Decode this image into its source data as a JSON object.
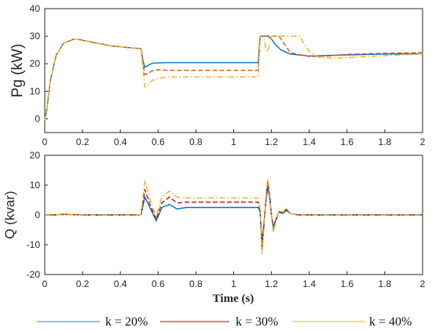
{
  "chart_data": [
    {
      "type": "line",
      "ylabel": "Pg (kW)",
      "xlabel": "",
      "xlim": [
        0,
        2
      ],
      "ylim": [
        -5,
        40
      ],
      "xticks": [
        "0",
        "0.2",
        "0.4",
        "0.6",
        "0.8",
        "1",
        "1.2",
        "1.4",
        "1.6",
        "1.8",
        "2"
      ],
      "yticks": [
        "0",
        "10",
        "20",
        "30",
        "40"
      ],
      "series": [
        {
          "name": "k = 20%",
          "color": "#0072BD",
          "dash": "solid",
          "x": [
            0,
            0.01,
            0.03,
            0.06,
            0.1,
            0.15,
            0.18,
            0.25,
            0.35,
            0.45,
            0.51,
            0.52,
            0.53,
            0.55,
            0.57,
            0.6,
            0.65,
            0.7,
            0.8,
            1.0,
            1.13,
            1.14,
            1.18,
            1.2,
            1.22,
            1.25,
            1.3,
            1.4,
            1.5,
            1.6,
            1.8,
            2.0
          ],
          "y": [
            -0.5,
            3,
            14,
            23,
            27.5,
            28.8,
            28.8,
            27.8,
            26.5,
            25.8,
            25.5,
            21,
            18.7,
            19.5,
            20.2,
            20.3,
            20.4,
            20.4,
            20.4,
            20.4,
            20.4,
            30,
            30,
            29,
            27,
            25,
            23.5,
            22.8,
            23,
            23.2,
            23.5,
            23.6
          ]
        },
        {
          "name": "k = 30%",
          "color": "#D95319",
          "dash": "dashed",
          "x": [
            0,
            0.01,
            0.03,
            0.06,
            0.1,
            0.15,
            0.18,
            0.25,
            0.35,
            0.45,
            0.51,
            0.52,
            0.53,
            0.55,
            0.57,
            0.6,
            0.65,
            0.7,
            0.8,
            1.0,
            1.13,
            1.14,
            1.18,
            1.24,
            1.25,
            1.28,
            1.3,
            1.4,
            1.5,
            1.6,
            1.8,
            2.0
          ],
          "y": [
            -0.5,
            3,
            14,
            23,
            27.5,
            28.8,
            28.8,
            27.8,
            26.5,
            25.8,
            25.5,
            20,
            16,
            16.5,
            17.5,
            17.8,
            17.6,
            17.6,
            17.6,
            17.6,
            17.6,
            30,
            30,
            30,
            29,
            26,
            24,
            22.6,
            22.8,
            23.4,
            23.8,
            24
          ]
        },
        {
          "name": "k = 40%",
          "color": "#EDB120",
          "dash": "dashdot",
          "x": [
            0,
            0.01,
            0.03,
            0.06,
            0.1,
            0.15,
            0.18,
            0.25,
            0.35,
            0.45,
            0.51,
            0.52,
            0.53,
            0.55,
            0.57,
            0.6,
            0.65,
            0.7,
            0.8,
            1.0,
            1.13,
            1.14,
            1.16,
            1.17,
            1.18,
            1.19,
            1.2,
            1.25,
            1.35,
            1.37,
            1.4,
            1.45,
            1.55,
            1.7,
            2.0
          ],
          "y": [
            -0.5,
            3,
            14,
            23,
            27.5,
            28.8,
            28.8,
            27.8,
            26.5,
            25.8,
            25.5,
            18,
            11.5,
            12.5,
            14,
            14.6,
            15.2,
            15.2,
            15.2,
            15.2,
            15.2,
            30,
            29.5,
            25.5,
            24.3,
            27,
            30,
            30,
            30,
            27.5,
            24.5,
            22.3,
            22,
            22.6,
            23.6
          ]
        }
      ]
    },
    {
      "type": "line",
      "ylabel": "Q (kvar)",
      "xlabel": "Time (s)",
      "xlim": [
        0,
        2
      ],
      "ylim": [
        -20,
        20
      ],
      "xticks": [
        "0",
        "0.2",
        "0.4",
        "0.6",
        "0.8",
        "1",
        "1.2",
        "1.4",
        "1.6",
        "1.8",
        "2"
      ],
      "yticks": [
        "-20",
        "-10",
        "0",
        "10",
        "20"
      ],
      "series": [
        {
          "name": "k = 20%",
          "color": "#0072BD",
          "dash": "solid",
          "x": [
            0,
            0.05,
            0.1,
            0.2,
            0.3,
            0.4,
            0.5,
            0.51,
            0.53,
            0.56,
            0.59,
            0.62,
            0.66,
            0.7,
            0.75,
            0.8,
            0.9,
            1.0,
            1.13,
            1.14,
            1.15,
            1.16,
            1.17,
            1.18,
            1.19,
            1.2,
            1.21,
            1.22,
            1.24,
            1.26,
            1.28,
            1.3,
            1.34,
            1.4,
            1.6,
            2.0
          ],
          "y": [
            0,
            0,
            0.2,
            0,
            0,
            0,
            0,
            0.1,
            6,
            2,
            -2,
            2.5,
            3.5,
            2,
            2.5,
            2.5,
            2.5,
            2.5,
            2.5,
            1,
            -9.5,
            -3,
            4,
            9.5,
            6,
            0,
            -4,
            -2,
            1,
            0.5,
            1.5,
            0.5,
            0,
            0,
            0,
            0
          ]
        },
        {
          "name": "k = 30%",
          "color": "#A2142F",
          "dash": "dashed",
          "x": [
            0,
            0.05,
            0.1,
            0.2,
            0.3,
            0.4,
            0.5,
            0.51,
            0.53,
            0.56,
            0.59,
            0.62,
            0.66,
            0.7,
            0.75,
            0.8,
            0.9,
            1.0,
            1.13,
            1.14,
            1.15,
            1.16,
            1.17,
            1.18,
            1.19,
            1.2,
            1.21,
            1.22,
            1.24,
            1.26,
            1.28,
            1.3,
            1.34,
            1.4,
            1.6,
            2.0
          ],
          "y": [
            0,
            0,
            0.2,
            0,
            0,
            0,
            0,
            0.1,
            8.5,
            3,
            -1.5,
            4,
            6,
            4,
            4.3,
            4.3,
            4.3,
            4.3,
            4.3,
            1.5,
            -11.5,
            -4,
            5,
            11,
            7,
            0,
            -5,
            -2.5,
            1,
            0.8,
            1.8,
            0.5,
            0,
            0,
            0,
            0
          ]
        },
        {
          "name": "k = 40%",
          "color": "#EDB120",
          "dash": "dashdot",
          "x": [
            0,
            0.05,
            0.1,
            0.2,
            0.3,
            0.4,
            0.5,
            0.51,
            0.53,
            0.56,
            0.59,
            0.62,
            0.66,
            0.7,
            0.75,
            0.8,
            0.9,
            1.0,
            1.13,
            1.14,
            1.15,
            1.16,
            1.17,
            1.18,
            1.19,
            1.2,
            1.21,
            1.22,
            1.24,
            1.26,
            1.28,
            1.3,
            1.34,
            1.4,
            1.6,
            2.0
          ],
          "y": [
            0,
            0,
            0.2,
            0,
            0,
            0,
            0,
            0.1,
            11.5,
            4.5,
            -0.5,
            6,
            8,
            6,
            5.7,
            5.7,
            5.7,
            5.7,
            5.7,
            2,
            -13,
            -5,
            5.5,
            12,
            8,
            0,
            -6,
            -3,
            1.5,
            1,
            2.3,
            0.5,
            0,
            0,
            0,
            0
          ]
        }
      ]
    }
  ],
  "legend": [
    {
      "label": "k = 20%",
      "color": "#4472C4"
    },
    {
      "label": "k = 30%",
      "color": "#C00000"
    },
    {
      "label": "k = 40%",
      "color": "#E8C000"
    }
  ]
}
